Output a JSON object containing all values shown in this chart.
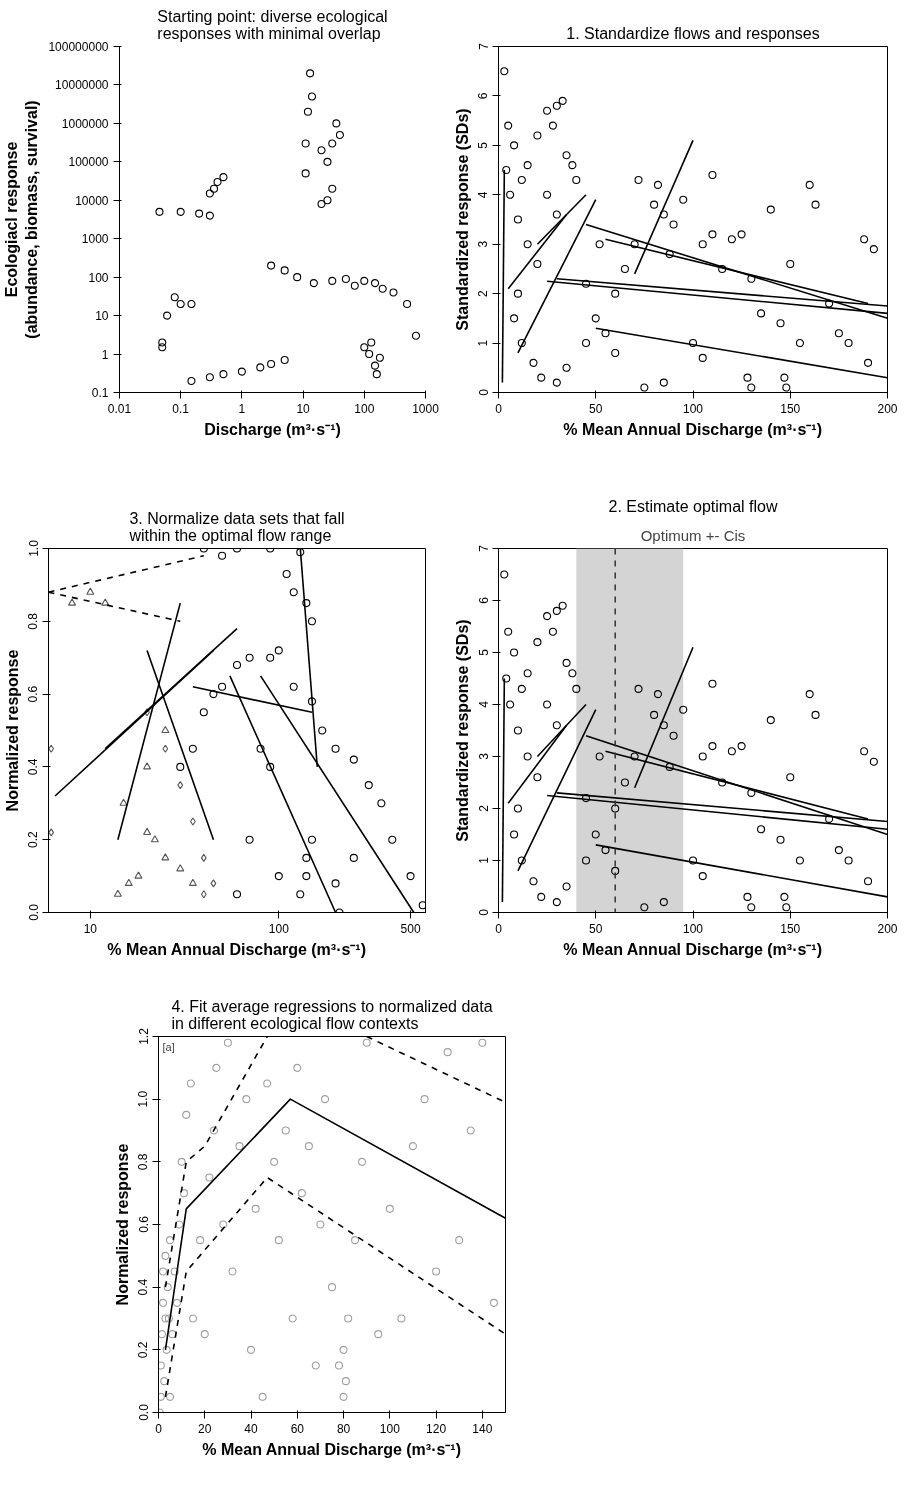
{
  "chart_data": [
    {
      "type": "scatter",
      "title": "Starting point: diverse ecological\nresponses with minimal overlap",
      "xlabel": "Discharge (m³·s⁻¹)",
      "ylabel": "Ecologiacl response\n(abundance, biomass, survival)",
      "log": "xy",
      "xlim": [
        0.01,
        1000
      ],
      "ylim": [
        0.1,
        100000000
      ],
      "xticks": [
        0.01,
        0.1,
        1,
        10,
        100,
        1000
      ],
      "yticks": [
        0.1,
        1,
        10,
        100,
        1000,
        10000,
        100000,
        1000000,
        10000000,
        100000000
      ],
      "grid": false,
      "series": [
        {
          "color": "#000000",
          "marker": "circle",
          "x": [
            0.045,
            0.1,
            0.2,
            0.3,
            0.3,
            0.35,
            0.4,
            0.5,
            0.05,
            0.05,
            0.06,
            0.08,
            0.1,
            0.15,
            0.15,
            0.3,
            0.5,
            1,
            2,
            3,
            5,
            13,
            14,
            12,
            11,
            11,
            20,
            25,
            30,
            35,
            40,
            25,
            20,
            30,
            3,
            5,
            8,
            15,
            30,
            50,
            70,
            100,
            150,
            200,
            300,
            500,
            700,
            100,
            120,
            150,
            160,
            130,
            180
          ],
          "values": [
            5000,
            5000,
            4500,
            4000,
            15000,
            20000,
            30000,
            40000,
            1.5,
            2,
            10,
            30,
            20,
            20,
            0.2,
            0.25,
            0.3,
            0.35,
            0.45,
            0.55,
            0.7,
            20000000,
            5000000,
            2000000,
            300000,
            50000,
            200000,
            100000,
            300000,
            1000000,
            500000,
            10000,
            8000,
            20000,
            200,
            150,
            100,
            70,
            80,
            90,
            60,
            80,
            70,
            50,
            40,
            20,
            3,
            1.5,
            1,
            0.5,
            0.3,
            2,
            0.8
          ]
        }
      ]
    },
    {
      "type": "scatter",
      "title": "1. Standardize flows and responses",
      "xlabel": "% Mean Annual Discharge (m³·s⁻¹)",
      "ylabel": "Standardized response (SDs)",
      "xlim": [
        0,
        200
      ],
      "ylim": [
        0,
        7
      ],
      "xticks": [
        0,
        50,
        100,
        150,
        200
      ],
      "yticks": [
        0,
        1,
        2,
        3,
        4,
        5,
        6,
        7
      ],
      "grid": false,
      "series": [
        {
          "color": "#000000",
          "marker": "circle",
          "x": [
            3,
            5,
            8,
            4,
            6,
            10,
            12,
            15,
            20,
            25,
            30,
            33,
            28,
            35,
            38,
            40,
            25,
            30,
            15,
            20,
            10,
            8,
            12,
            18,
            22,
            30,
            35,
            45,
            50,
            55,
            60,
            65,
            70,
            72,
            80,
            85,
            90,
            95,
            88,
            105,
            110,
            115,
            120,
            125,
            130,
            135,
            140,
            145,
            150,
            155,
            160,
            163,
            170,
            175,
            180,
            188,
            193,
            190,
            100,
            105,
            75,
            85,
            128,
            130,
            147,
            148,
            110,
            82,
            60,
            52,
            45
          ],
          "values": [
            6.5,
            5.4,
            5.0,
            4.5,
            4.0,
            3.5,
            4.3,
            4.6,
            5.2,
            5.7,
            5.8,
            5.9,
            5.4,
            4.8,
            4.6,
            4.3,
            4.0,
            3.6,
            3.0,
            2.6,
            2.0,
            1.5,
            1.0,
            0.6,
            0.3,
            0.2,
            0.5,
            1.0,
            1.5,
            1.2,
            2.0,
            2.5,
            3.0,
            4.3,
            3.8,
            3.6,
            3.4,
            3.9,
            2.8,
            3.0,
            3.2,
            2.5,
            3.1,
            3.2,
            2.3,
            1.6,
            3.7,
            1.4,
            2.6,
            1.0,
            4.2,
            3.8,
            1.8,
            1.2,
            1.0,
            3.1,
            2.9,
            0.6,
            1.0,
            0.7,
            0.1,
            0.2,
            0.3,
            0.1,
            0.3,
            0.1,
            4.4,
            4.2,
            0.8,
            3.0,
            2.2
          ]
        },
        {
          "type": "line",
          "color": "#000000",
          "x": [
            20,
            45
          ],
          "values": [
            3.0,
            4.0
          ]
        },
        {
          "type": "line",
          "color": "#000000",
          "x": [
            45,
            200
          ],
          "values": [
            3.4,
            1.5
          ]
        },
        {
          "type": "line",
          "color": "#000000",
          "x": [
            55,
            190
          ],
          "values": [
            3.1,
            1.8
          ]
        },
        {
          "type": "line",
          "color": "#000000",
          "x": [
            25,
            200
          ],
          "values": [
            2.25,
            1.6
          ]
        },
        {
          "type": "line",
          "color": "#000000",
          "x": [
            70,
            100
          ],
          "values": [
            2.4,
            5.1
          ]
        },
        {
          "type": "line",
          "color": "#000000",
          "x": [
            5,
            35
          ],
          "values": [
            2.1,
            3.6
          ]
        },
        {
          "type": "line",
          "color": "#000000",
          "x": [
            50,
            200
          ],
          "values": [
            1.3,
            0.3
          ]
        },
        {
          "type": "line",
          "color": "#000000",
          "x": [
            10,
            50
          ],
          "values": [
            0.8,
            3.9
          ]
        },
        {
          "type": "line",
          "color": "#000000",
          "x": [
            30,
            200
          ],
          "values": [
            2.3,
            1.75
          ]
        },
        {
          "type": "line",
          "color": "#000000",
          "x": [
            2,
            3
          ],
          "values": [
            0.2,
            4.5
          ]
        }
      ]
    },
    {
      "type": "scatter",
      "title": "2. Estimate optimal flow",
      "xlabel": "% Mean Annual Discharge (m³·s⁻¹)",
      "ylabel": "Standardized response (SDs)",
      "xlim": [
        0,
        200
      ],
      "ylim": [
        0,
        7
      ],
      "xticks": [
        0,
        50,
        100,
        150,
        200
      ],
      "yticks": [
        0,
        1,
        2,
        3,
        4,
        5,
        6,
        7
      ],
      "grid": false,
      "bands": [
        {
          "axis": "x",
          "from": 40,
          "to": 95,
          "label": "Optimum +- Cis",
          "color": "#d4d4d4"
        }
      ],
      "ref_lines": [
        {
          "axis": "x",
          "value": 60,
          "line_style": "dashed",
          "color": "#333333"
        }
      ],
      "series": [
        {
          "color": "#000000",
          "marker": "circle",
          "x": [
            3,
            5,
            8,
            4,
            6,
            10,
            12,
            15,
            20,
            25,
            30,
            33,
            28,
            35,
            38,
            40,
            25,
            30,
            15,
            20,
            10,
            8,
            12,
            18,
            22,
            30,
            35,
            45,
            50,
            55,
            60,
            65,
            70,
            72,
            80,
            85,
            90,
            95,
            88,
            105,
            110,
            115,
            120,
            125,
            130,
            135,
            140,
            145,
            150,
            155,
            160,
            163,
            170,
            175,
            180,
            188,
            193,
            190,
            100,
            105,
            75,
            85,
            128,
            130,
            147,
            148,
            110,
            82,
            60,
            52,
            45
          ],
          "values": [
            6.5,
            5.4,
            5.0,
            4.5,
            4.0,
            3.5,
            4.3,
            4.6,
            5.2,
            5.7,
            5.8,
            5.9,
            5.4,
            4.8,
            4.6,
            4.3,
            4.0,
            3.6,
            3.0,
            2.6,
            2.0,
            1.5,
            1.0,
            0.6,
            0.3,
            0.2,
            0.5,
            1.0,
            1.5,
            1.2,
            2.0,
            2.5,
            3.0,
            4.3,
            3.8,
            3.6,
            3.4,
            3.9,
            2.8,
            3.0,
            3.2,
            2.5,
            3.1,
            3.2,
            2.3,
            1.6,
            3.7,
            1.4,
            2.6,
            1.0,
            4.2,
            3.8,
            1.8,
            1.2,
            1.0,
            3.1,
            2.9,
            0.6,
            1.0,
            0.7,
            0.1,
            0.2,
            0.3,
            0.1,
            0.3,
            0.1,
            4.4,
            4.2,
            0.8,
            3.0,
            2.2
          ]
        },
        {
          "type": "line",
          "color": "#000000",
          "x": [
            20,
            45
          ],
          "values": [
            3.0,
            4.0
          ]
        },
        {
          "type": "line",
          "color": "#000000",
          "x": [
            45,
            200
          ],
          "values": [
            3.4,
            1.5
          ]
        },
        {
          "type": "line",
          "color": "#000000",
          "x": [
            55,
            190
          ],
          "values": [
            3.1,
            1.8
          ]
        },
        {
          "type": "line",
          "color": "#000000",
          "x": [
            25,
            200
          ],
          "values": [
            2.25,
            1.6
          ]
        },
        {
          "type": "line",
          "color": "#000000",
          "x": [
            70,
            100
          ],
          "values": [
            2.4,
            5.1
          ]
        },
        {
          "type": "line",
          "color": "#000000",
          "x": [
            5,
            35
          ],
          "values": [
            2.1,
            3.6
          ]
        },
        {
          "type": "line",
          "color": "#000000",
          "x": [
            50,
            200
          ],
          "values": [
            1.3,
            0.3
          ]
        },
        {
          "type": "line",
          "color": "#000000",
          "x": [
            10,
            50
          ],
          "values": [
            0.8,
            3.9
          ]
        },
        {
          "type": "line",
          "color": "#000000",
          "x": [
            30,
            200
          ],
          "values": [
            2.3,
            1.75
          ]
        },
        {
          "type": "line",
          "color": "#000000",
          "x": [
            2,
            3
          ],
          "values": [
            0.2,
            4.5
          ]
        }
      ]
    },
    {
      "type": "scatter",
      "title": "3. Normalize data sets that fall\nwithin the optimal flow range",
      "xlabel": "% Mean Annual Discharge (m³·s⁻¹)",
      "ylabel": "Normalized response",
      "log": "x",
      "xlim": [
        6,
        600
      ],
      "ylim": [
        0,
        1
      ],
      "xticks": [
        10,
        100,
        500
      ],
      "yticks": [
        {
          "value": 0,
          "label": "0.0"
        },
        {
          "value": 0.2,
          "label": "0.2"
        },
        {
          "value": 0.4,
          "label": "0.4"
        },
        {
          "value": 0.6,
          "label": "0.6"
        },
        {
          "value": 0.8,
          "label": "0.8"
        },
        {
          "value": 1,
          "label": "1.0"
        }
      ],
      "grid": false,
      "series": [
        {
          "color": "#000000",
          "marker": "circle",
          "x": [
            40,
            50,
            60,
            90,
            130,
            110,
            120,
            140,
            150,
            100,
            90,
            70,
            60,
            50,
            45,
            40,
            35,
            30,
            120,
            150,
            170,
            200,
            250,
            300,
            400,
            350,
            250,
            200,
            130,
            140,
            140,
            150,
            100,
            90,
            80,
            70,
            60,
            210,
            500,
            580
          ],
          "values": [
            1.0,
            0.98,
            1.0,
            1.0,
            0.99,
            0.93,
            0.88,
            0.85,
            0.8,
            0.72,
            0.7,
            0.7,
            0.68,
            0.62,
            0.6,
            0.55,
            0.45,
            0.4,
            0.62,
            0.58,
            0.5,
            0.45,
            0.42,
            0.35,
            0.2,
            0.3,
            0.15,
            0.08,
            0.05,
            0.1,
            0.15,
            0.2,
            0.1,
            0.4,
            0.45,
            0.2,
            0.05,
            0.0,
            0.1,
            0.02
          ]
        },
        {
          "color": "#555555",
          "marker": "triangle",
          "x": [
            8,
            10,
            12,
            14,
            16,
            18,
            20,
            22,
            25,
            30,
            35,
            15,
            20,
            25
          ],
          "values": [
            0.85,
            0.88,
            0.85,
            0.05,
            0.08,
            0.1,
            0.22,
            0.2,
            0.15,
            0.12,
            0.08,
            0.3,
            0.4,
            0.5
          ]
        },
        {
          "color": "#555555",
          "marker": "diamond",
          "x": [
            6.2,
            6.2,
            20,
            25,
            30,
            35,
            40,
            40,
            45
          ],
          "values": [
            0.45,
            0.22,
            0.55,
            0.45,
            0.35,
            0.25,
            0.15,
            0.05,
            0.08
          ]
        },
        {
          "type": "line",
          "color": "#000000",
          "x": [
            6.5,
            45
          ],
          "values": [
            0.32,
            0.72
          ]
        },
        {
          "type": "line",
          "color": "#000000",
          "x": [
            12,
            60
          ],
          "values": [
            0.45,
            0.78
          ]
        },
        {
          "type": "line",
          "color": "#000000",
          "x": [
            14,
            30
          ],
          "values": [
            0.2,
            0.85
          ]
        },
        {
          "type": "line",
          "color": "#000000",
          "x": [
            20,
            45
          ],
          "values": [
            0.72,
            0.2
          ]
        },
        {
          "type": "line",
          "color": "#000000",
          "x": [
            55,
            200
          ],
          "values": [
            0.65,
            0.0
          ]
        },
        {
          "type": "line",
          "color": "#000000",
          "x": [
            80,
            520
          ],
          "values": [
            0.65,
            0.0
          ]
        },
        {
          "type": "line",
          "color": "#000000",
          "x": [
            130,
            160
          ],
          "values": [
            1.0,
            0.4
          ]
        },
        {
          "type": "line",
          "color": "#000000",
          "x": [
            35,
            150
          ],
          "values": [
            0.62,
            0.55
          ]
        },
        {
          "type": "line",
          "color": "#000000",
          "line_style": "dashed",
          "x": [
            6,
            40
          ],
          "values": [
            0.88,
            0.98
          ]
        },
        {
          "type": "line",
          "color": "#000000",
          "line_style": "dashed",
          "x": [
            6,
            30
          ],
          "values": [
            0.88,
            0.8
          ]
        }
      ]
    },
    {
      "type": "scatter",
      "title": "4. Fit average regressions to normalized data\nin different ecological flow contexts",
      "xlabel": "% Mean Annual Discharge (m³·s⁻¹)",
      "ylabel": "Normalized response",
      "xlim": [
        0,
        150
      ],
      "ylim": [
        0,
        1.2
      ],
      "xticks": [
        0,
        20,
        40,
        60,
        80,
        100,
        120,
        140
      ],
      "yticks": [
        {
          "value": 0,
          "label": "0.0"
        },
        {
          "value": 0.2,
          "label": "0.2"
        },
        {
          "value": 0.4,
          "label": "0.4"
        },
        {
          "value": 0.6,
          "label": "0.6"
        },
        {
          "value": 0.8,
          "label": "0.8"
        },
        {
          "value": 1,
          "label": "1.0"
        },
        {
          "value": 1.2,
          "label": "1.2"
        }
      ],
      "grid": false,
      "annotations": [
        "[a]"
      ],
      "series": [
        {
          "color": "#a0a0a0",
          "marker": "circle",
          "x": [
            0.5,
            1,
            1,
            1.5,
            2,
            2,
            2.5,
            3,
            3,
            3.5,
            4,
            4.5,
            5,
            5,
            6,
            7,
            8,
            9,
            10,
            11,
            12,
            14,
            15,
            18,
            20,
            22,
            24,
            25,
            28,
            30,
            32,
            35,
            38,
            40,
            42,
            45,
            47,
            50,
            52,
            55,
            58,
            60,
            62,
            65,
            68,
            70,
            72,
            75,
            78,
            80,
            80,
            81,
            82,
            85,
            88,
            90,
            95,
            100,
            105,
            110,
            115,
            120,
            125,
            130,
            135,
            140,
            145
          ],
          "values": [
            0.0,
            0.05,
            0.15,
            0.25,
            0.35,
            0.45,
            0.1,
            0.3,
            0.5,
            0.2,
            0.4,
            0.3,
            0.55,
            0.05,
            0.25,
            0.45,
            0.35,
            0.6,
            0.8,
            0.7,
            0.95,
            1.05,
            0.3,
            0.55,
            0.25,
            0.75,
            0.9,
            1.1,
            0.6,
            1.18,
            0.45,
            0.85,
            1.0,
            0.2,
            0.65,
            0.05,
            1.05,
            0.8,
            0.55,
            0.9,
            0.3,
            1.1,
            0.7,
            0.85,
            0.15,
            0.6,
            1.0,
            0.4,
            0.15,
            0.05,
            0.2,
            0.1,
            0.3,
            0.55,
            0.8,
            1.18,
            0.25,
            0.65,
            0.3,
            0.85,
            1.0,
            0.45,
            1.15,
            0.55,
            0.9,
            1.18,
            0.35
          ]
        },
        {
          "type": "line",
          "color": "#000000",
          "x": [
            3,
            12,
            57,
            150
          ],
          "values": [
            0.2,
            0.65,
            1.0,
            0.62
          ]
        },
        {
          "type": "line",
          "color": "#000000",
          "line_style": "dashed",
          "x": [
            3,
            12,
            20,
            47
          ],
          "values": [
            0.4,
            0.8,
            0.85,
            1.2
          ]
        },
        {
          "type": "line",
          "color": "#000000",
          "line_style": "dashed",
          "x": [
            90,
            150
          ],
          "values": [
            1.2,
            0.99
          ]
        },
        {
          "type": "line",
          "color": "#000000",
          "line_style": "dashed",
          "x": [
            3,
            12,
            47,
            150
          ],
          "values": [
            0.05,
            0.45,
            0.75,
            0.25
          ]
        }
      ]
    }
  ]
}
